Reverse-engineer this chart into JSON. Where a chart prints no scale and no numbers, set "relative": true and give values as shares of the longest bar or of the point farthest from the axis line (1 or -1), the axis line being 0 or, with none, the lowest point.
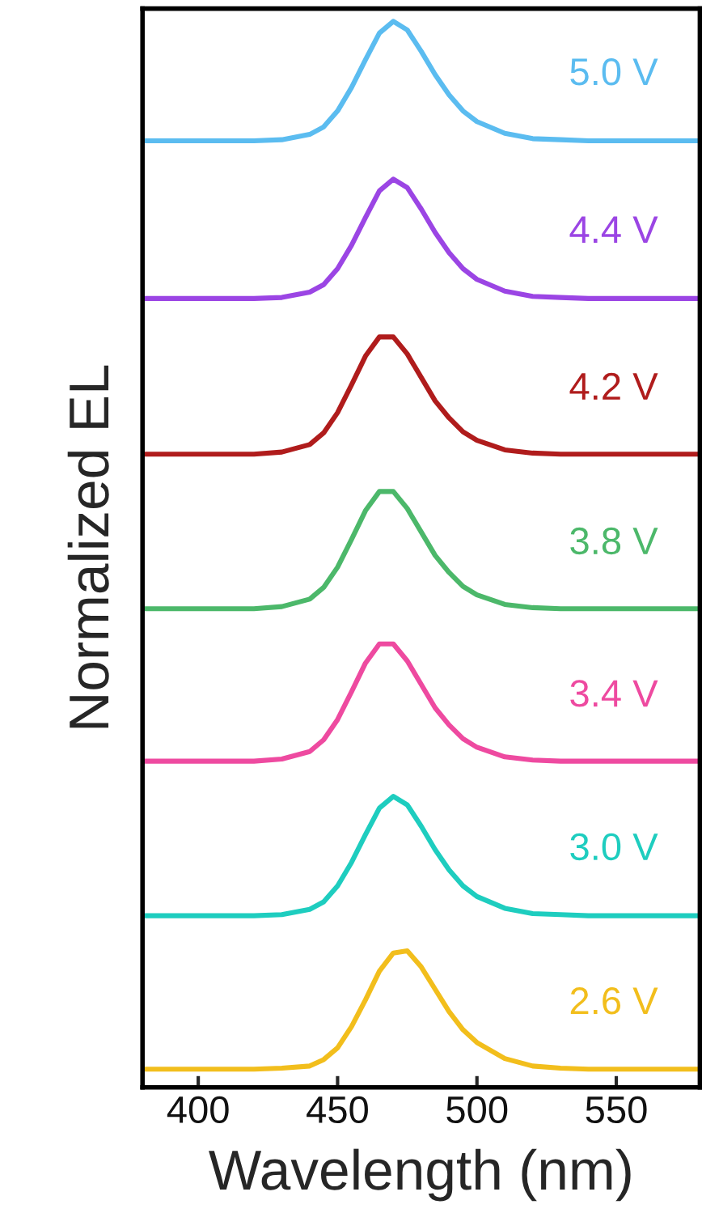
{
  "chart_data": {
    "type": "line",
    "relative": true,
    "xlabel": "Wavelength (nm)",
    "ylabel": "Normalized EL",
    "xlim": [
      380,
      580
    ],
    "xticks": [
      400,
      450,
      500,
      550
    ],
    "tick_labels": "x",
    "legend": false,
    "grid": false,
    "x": [
      380,
      400,
      420,
      430,
      440,
      445,
      450,
      455,
      460,
      465,
      470,
      475,
      480,
      485,
      490,
      495,
      500,
      510,
      520,
      530,
      540,
      560,
      580
    ],
    "series": [
      {
        "name": "5.0 V",
        "color": "#5bbcf0",
        "values": [
          0.888,
          0.888,
          0.888,
          0.889,
          0.894,
          0.901,
          0.916,
          0.938,
          0.964,
          0.989,
          1.0,
          0.992,
          0.972,
          0.95,
          0.931,
          0.916,
          0.906,
          0.895,
          0.89,
          0.889,
          0.888,
          0.888,
          0.888
        ]
      },
      {
        "name": "4.4 V",
        "color": "#9b45e4",
        "values": [
          0.74,
          0.74,
          0.74,
          0.741,
          0.746,
          0.753,
          0.768,
          0.79,
          0.816,
          0.841,
          0.852,
          0.844,
          0.824,
          0.802,
          0.783,
          0.768,
          0.758,
          0.747,
          0.742,
          0.741,
          0.74,
          0.74,
          0.74
        ]
      },
      {
        "name": "4.2 V",
        "color": "#b01c1c",
        "values": [
          0.594,
          0.594,
          0.594,
          0.596,
          0.603,
          0.614,
          0.633,
          0.659,
          0.686,
          0.704,
          0.704,
          0.688,
          0.666,
          0.644,
          0.628,
          0.615,
          0.607,
          0.598,
          0.595,
          0.594,
          0.594,
          0.594,
          0.594
        ]
      },
      {
        "name": "3.8 V",
        "color": "#4cb86a",
        "values": [
          0.449,
          0.449,
          0.449,
          0.451,
          0.458,
          0.469,
          0.488,
          0.514,
          0.541,
          0.559,
          0.559,
          0.543,
          0.521,
          0.499,
          0.483,
          0.47,
          0.462,
          0.453,
          0.45,
          0.449,
          0.449,
          0.449,
          0.449
        ]
      },
      {
        "name": "3.4 V",
        "color": "#ee4aa0",
        "values": [
          0.306,
          0.306,
          0.306,
          0.308,
          0.315,
          0.326,
          0.345,
          0.371,
          0.398,
          0.416,
          0.416,
          0.4,
          0.378,
          0.356,
          0.34,
          0.327,
          0.319,
          0.31,
          0.307,
          0.306,
          0.306,
          0.306,
          0.306
        ]
      },
      {
        "name": "3.0 V",
        "color": "#1ecdbf",
        "values": [
          0.161,
          0.161,
          0.161,
          0.162,
          0.167,
          0.174,
          0.189,
          0.211,
          0.237,
          0.262,
          0.273,
          0.265,
          0.245,
          0.223,
          0.204,
          0.189,
          0.179,
          0.168,
          0.163,
          0.162,
          0.161,
          0.161,
          0.161
        ]
      },
      {
        "name": "2.6 V",
        "color": "#f2be1c",
        "values": [
          0.017,
          0.017,
          0.017,
          0.018,
          0.02,
          0.026,
          0.037,
          0.057,
          0.082,
          0.109,
          0.126,
          0.128,
          0.113,
          0.092,
          0.071,
          0.054,
          0.042,
          0.027,
          0.02,
          0.018,
          0.017,
          0.017,
          0.017
        ]
      }
    ]
  }
}
